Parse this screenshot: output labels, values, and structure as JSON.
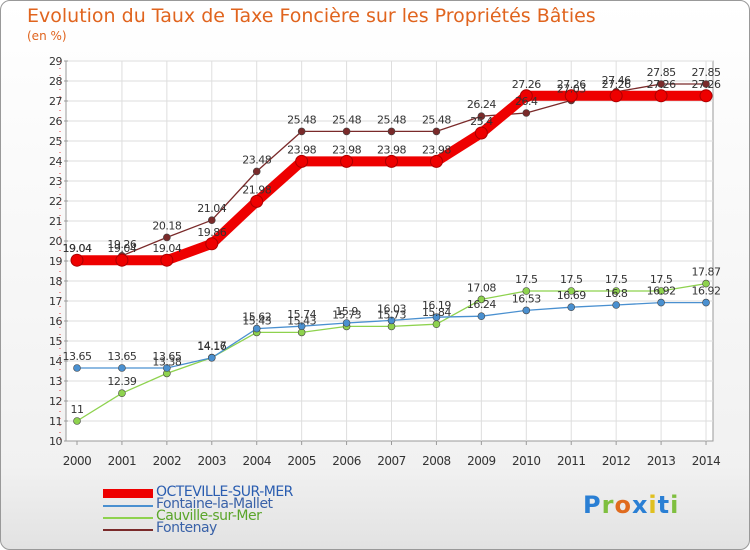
{
  "title": "Evolution du Taux de Taxe Foncière sur les Propriétés Bâties",
  "unit_label": "(en %)",
  "logo": {
    "text": "Proxiti",
    "letter_colors": [
      "#2a7fd4",
      "#7fbf3f",
      "#e06b1e",
      "#2a7fd4",
      "#e0c020",
      "#2a7fd4",
      "#7fbf3f"
    ]
  },
  "chart_data": {
    "type": "line",
    "title": "Evolution du Taux de Taxe Foncière sur les Propriétés Bâties",
    "ylabel": "(en %)",
    "xlabel": "",
    "x": [
      "2000",
      "2001",
      "2002",
      "2003",
      "2004",
      "2005",
      "2006",
      "2007",
      "2008",
      "2009",
      "2010",
      "2011",
      "2012",
      "2013",
      "2014"
    ],
    "y_ticks": [
      "10",
      "11",
      "12",
      "13",
      "14",
      "15",
      "16",
      "17",
      "18",
      "19",
      "20",
      "21",
      "22",
      "23",
      "24",
      "25",
      "26",
      "27",
      "28",
      "29"
    ],
    "ylim": [
      10,
      29
    ],
    "grid": true,
    "legend_position": "bottom-left",
    "series": [
      {
        "name": "OCTEVILLE-SUR-MER",
        "color": "#ee0000",
        "style": "thick",
        "values": [
          19.04,
          19.04,
          19.04,
          19.86,
          21.98,
          23.98,
          23.98,
          23.98,
          23.98,
          25.4,
          27.26,
          27.26,
          27.26,
          27.26,
          27.26
        ],
        "labels": [
          "19.04",
          "19.04",
          "19.04",
          "19.86",
          "21.98",
          "23.98",
          "23.98",
          "23.98",
          "23.98",
          "25.4",
          "27.26",
          "27.26",
          "27.26",
          "27.26",
          "27.26"
        ]
      },
      {
        "name": "Fontaine-la-Mallet",
        "color": "#4a90d0",
        "style": "thin",
        "values": [
          13.65,
          13.65,
          13.65,
          14.16,
          15.62,
          15.74,
          15.9,
          16.03,
          16.19,
          16.24,
          16.53,
          16.69,
          16.8,
          16.92,
          16.92
        ],
        "labels": [
          "13.65",
          "13.65",
          "13.65",
          "14.16",
          "15.62",
          "15.74",
          "15.9",
          "16.03",
          "16.19",
          "16.24",
          "16.53",
          "16.69",
          "16.8",
          "16.92",
          "16.92"
        ]
      },
      {
        "name": "Cauville-sur-Mer",
        "color": "#8ed24e",
        "style": "thin",
        "values": [
          11,
          12.39,
          13.38,
          14.17,
          15.43,
          15.43,
          15.73,
          15.73,
          15.84,
          17.08,
          17.5,
          17.5,
          17.5,
          17.5,
          17.87
        ],
        "labels": [
          "11",
          "12.39",
          "13.38",
          "14.17",
          "15.43",
          "15.43",
          "15.73",
          "15.73",
          "15.84",
          "17.08",
          "17.5",
          "17.5",
          "17.5",
          "17.5",
          "17.87"
        ]
      },
      {
        "name": "Fontenay",
        "color": "#7a2a2a",
        "style": "thin",
        "values": [
          19.04,
          19.26,
          20.18,
          21.04,
          23.48,
          25.48,
          25.48,
          25.48,
          25.48,
          26.24,
          26.4,
          27.03,
          27.46,
          27.85,
          27.85
        ],
        "labels": [
          "19.04",
          "19.26",
          "20.18",
          "21.04",
          "23.48",
          "25.48",
          "25.48",
          "25.48",
          "25.48",
          "26.24",
          "26.4",
          "27.03",
          "27.46",
          "27.85",
          "27.85"
        ]
      }
    ]
  }
}
